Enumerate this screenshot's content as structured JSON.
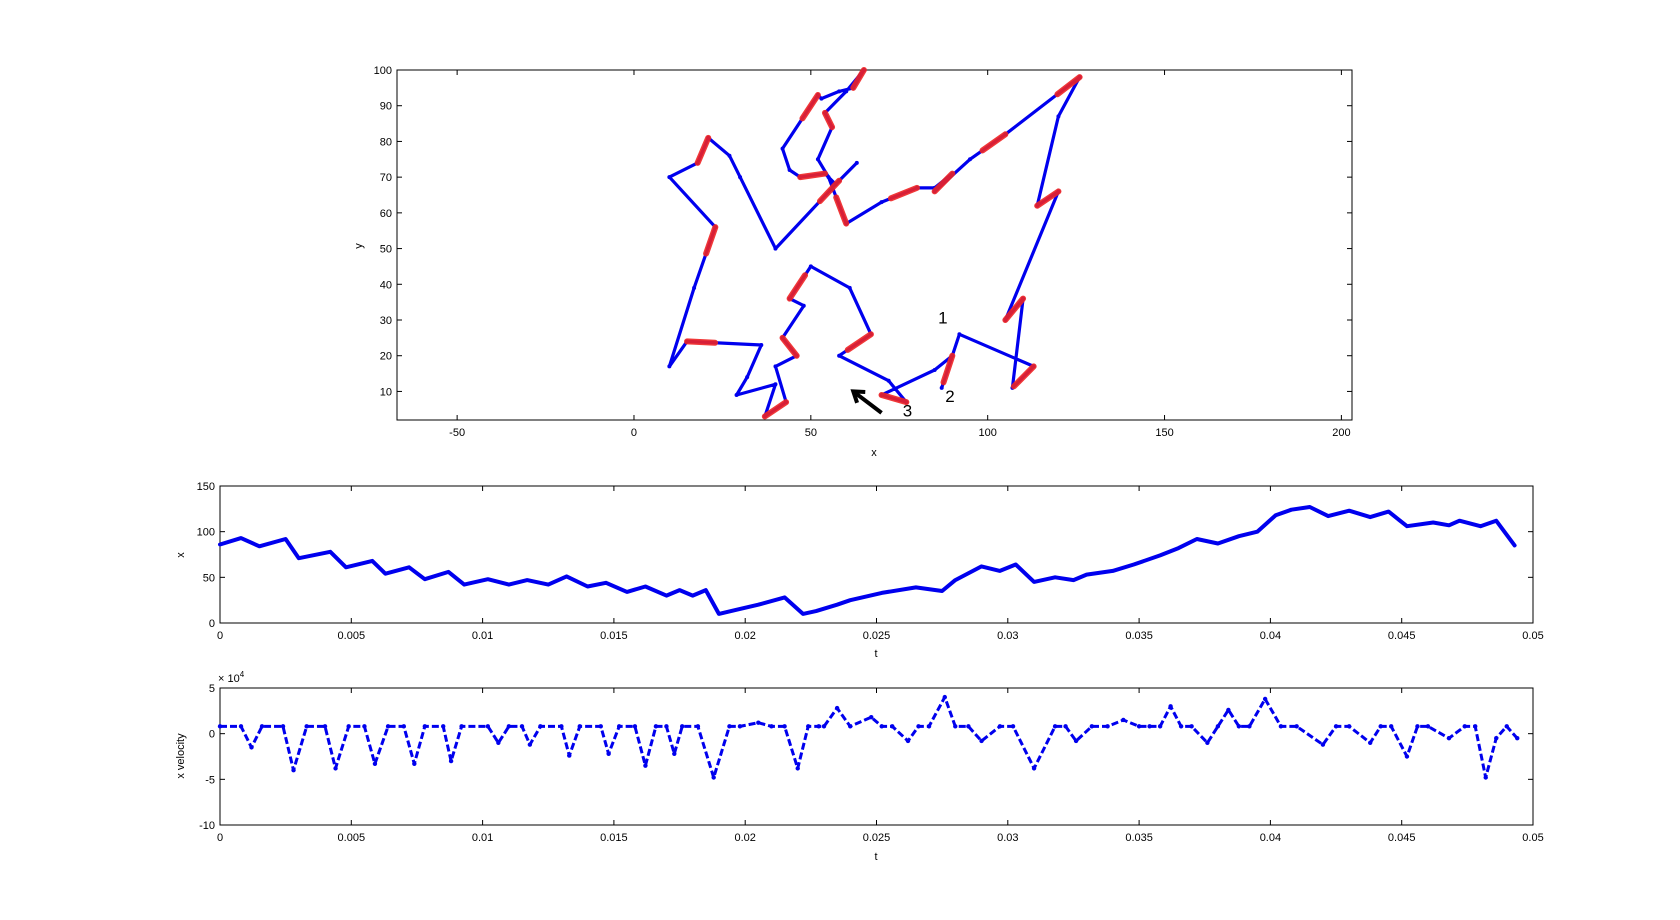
{
  "colors": {
    "trajectory": "#0000ee",
    "highlight": "#ee2222",
    "axes": "#000000"
  },
  "chart_data": [
    {
      "type": "line",
      "id": "xy",
      "xlabel": "x",
      "ylabel": "y",
      "xlim": [
        -67,
        203
      ],
      "ylim": [
        2,
        100
      ],
      "xticks": [
        -50,
        0,
        50,
        100,
        150,
        200
      ],
      "yticks": [
        10,
        20,
        30,
        40,
        50,
        60,
        70,
        80,
        90,
        100
      ],
      "series": [
        {
          "x": [
            126,
            105,
            95,
            85,
            90,
            85,
            80,
            70,
            60,
            55,
            52,
            56,
            54,
            60,
            65,
            62,
            58,
            53,
            52,
            42,
            44,
            47,
            54,
            57,
            63,
            58,
            40,
            30,
            27,
            21,
            18,
            10,
            23,
            17,
            10,
            15,
            36,
            32,
            29,
            40,
            37,
            43,
            40,
            46,
            42,
            48,
            44,
            50,
            61,
            67,
            58,
            72,
            77,
            70,
            85,
            90,
            87,
            92,
            113,
            107,
            110,
            105,
            120,
            114,
            120,
            126
          ],
          "y": [
            98,
            82,
            75,
            66,
            71,
            67,
            67,
            63,
            57,
            70,
            75,
            84,
            88,
            94,
            100,
            95,
            94,
            92,
            93,
            78,
            72,
            70,
            71,
            68,
            74,
            69,
            50,
            70,
            76,
            81,
            74,
            70,
            56,
            39,
            17,
            24,
            23,
            14,
            9,
            12,
            3,
            7,
            17,
            20,
            25,
            34,
            36,
            45,
            39,
            26,
            20,
            13,
            7,
            9,
            16,
            20,
            11,
            26,
            17,
            11,
            36,
            30,
            66,
            62,
            87,
            98
          ],
          "highlight_segments": [
            [
              0,
              1
            ],
            [
              1,
              2
            ],
            [
              3,
              4
            ],
            [
              6,
              7
            ],
            [
              8,
              9
            ],
            [
              11,
              12
            ],
            [
              14,
              15
            ],
            [
              18,
              19
            ],
            [
              21,
              22
            ],
            [
              25,
              26
            ],
            [
              29,
              30
            ],
            [
              32,
              33
            ],
            [
              35,
              36
            ],
            [
              40,
              41
            ],
            [
              43,
              44
            ],
            [
              46,
              47
            ],
            [
              49,
              50
            ],
            [
              52,
              53
            ],
            [
              55,
              56
            ],
            [
              58,
              59
            ],
            [
              60,
              61
            ],
            [
              62,
              63
            ]
          ]
        }
      ],
      "annotations": [
        {
          "text": "1",
          "x": 86,
          "y": 29
        },
        {
          "text": "2",
          "x": 88,
          "y": 7
        },
        {
          "text": "3",
          "x": 76,
          "y": 3
        }
      ],
      "arrow": {
        "from": [
          70,
          4
        ],
        "to": [
          62,
          10
        ]
      }
    },
    {
      "type": "line",
      "id": "xt",
      "xlabel": "t",
      "ylabel": "x",
      "xlim": [
        0,
        0.05
      ],
      "ylim": [
        0,
        150
      ],
      "xticks": [
        0,
        0.005,
        0.01,
        0.015,
        0.02,
        0.025,
        0.03,
        0.035,
        0.04,
        0.045,
        0.05
      ],
      "xticklabels": [
        "0",
        "0.005",
        "0.01",
        "0.015",
        "0.02",
        "0.025",
        "0.03",
        "0.035",
        "0.04",
        "0.045",
        "0.05"
      ],
      "yticks": [
        0,
        50,
        100,
        150
      ],
      "series": [
        {
          "x": [
            0,
            0.0008,
            0.0015,
            0.0025,
            0.003,
            0.0042,
            0.0048,
            0.0058,
            0.0063,
            0.0072,
            0.0078,
            0.0087,
            0.0093,
            0.0102,
            0.011,
            0.0117,
            0.0125,
            0.0132,
            0.014,
            0.0147,
            0.0155,
            0.0162,
            0.017,
            0.0175,
            0.018,
            0.0185,
            0.019,
            0.0196,
            0.0205,
            0.0215,
            0.0222,
            0.0227,
            0.0235,
            0.024,
            0.0252,
            0.0265,
            0.0275,
            0.028,
            0.029,
            0.0297,
            0.0303,
            0.031,
            0.0318,
            0.0325,
            0.033,
            0.034,
            0.0348,
            0.0358,
            0.0365,
            0.0372,
            0.038,
            0.0388,
            0.0395,
            0.0402,
            0.0408,
            0.0415,
            0.0422,
            0.043,
            0.0438,
            0.0445,
            0.0452,
            0.0462,
            0.0468,
            0.0472,
            0.048,
            0.0486,
            0.0493
          ],
          "y": [
            86,
            93,
            84,
            92,
            71,
            78,
            61,
            68,
            54,
            61,
            48,
            56,
            42,
            48,
            42,
            47,
            42,
            51,
            40,
            44,
            34,
            40,
            30,
            36,
            30,
            36,
            10,
            14,
            20,
            28,
            10,
            13,
            20,
            25,
            33,
            39,
            35,
            47,
            62,
            57,
            64,
            45,
            50,
            47,
            53,
            57,
            64,
            74,
            82,
            92,
            87,
            95,
            100,
            118,
            124,
            127,
            117,
            123,
            116,
            122,
            106,
            110,
            107,
            112,
            106,
            112,
            85
          ]
        }
      ]
    },
    {
      "type": "scatter",
      "id": "vt",
      "xlabel": "t",
      "ylabel": "x velocity",
      "exponent_label": "× 10",
      "exponent_power": "4",
      "xlim": [
        0,
        0.05
      ],
      "ylim": [
        -10,
        5
      ],
      "xticks": [
        0,
        0.005,
        0.01,
        0.015,
        0.02,
        0.025,
        0.03,
        0.035,
        0.04,
        0.045,
        0.05
      ],
      "xticklabels": [
        "0",
        "0.005",
        "0.01",
        "0.015",
        "0.02",
        "0.025",
        "0.03",
        "0.035",
        "0.04",
        "0.045",
        "0.05"
      ],
      "yticks": [
        -10,
        -5,
        0,
        5
      ],
      "series": [
        {
          "x": [
            0,
            0.0008,
            0.0012,
            0.0016,
            0.0024,
            0.0028,
            0.0033,
            0.004,
            0.0044,
            0.0049,
            0.0055,
            0.0059,
            0.0064,
            0.007,
            0.0074,
            0.0078,
            0.0085,
            0.0088,
            0.0092,
            0.0102,
            0.0106,
            0.011,
            0.0115,
            0.0118,
            0.0122,
            0.013,
            0.0133,
            0.0137,
            0.0145,
            0.0148,
            0.0152,
            0.0158,
            0.0162,
            0.0166,
            0.017,
            0.0173,
            0.0176,
            0.0182,
            0.0188,
            0.0194,
            0.0198,
            0.0205,
            0.021,
            0.0215,
            0.022,
            0.0224,
            0.0228,
            0.023,
            0.0235,
            0.024,
            0.0248,
            0.0252,
            0.0256,
            0.0262,
            0.0266,
            0.027,
            0.0276,
            0.028,
            0.0285,
            0.029,
            0.0297,
            0.0302,
            0.031,
            0.0318,
            0.0322,
            0.0326,
            0.0332,
            0.0338,
            0.0344,
            0.035,
            0.0354,
            0.0358,
            0.0362,
            0.0366,
            0.037,
            0.0376,
            0.038,
            0.0384,
            0.0388,
            0.0392,
            0.0398,
            0.0404,
            0.041,
            0.042,
            0.0425,
            0.043,
            0.0438,
            0.0442,
            0.0446,
            0.0452,
            0.0456,
            0.046,
            0.0468,
            0.0474,
            0.0478,
            0.0482,
            0.0486,
            0.049,
            0.0494
          ],
          "y": [
            0.8,
            0.8,
            -1.5,
            0.8,
            0.8,
            -4,
            0.8,
            0.8,
            -3.8,
            0.8,
            0.8,
            -3.3,
            0.8,
            0.8,
            -3.3,
            0.8,
            0.8,
            -3,
            0.8,
            0.8,
            -1,
            0.8,
            0.8,
            -1.2,
            0.8,
            0.8,
            -2.4,
            0.8,
            0.8,
            -2.2,
            0.8,
            0.8,
            -3.5,
            0.8,
            0.8,
            -2.2,
            0.8,
            0.8,
            -4.8,
            0.8,
            0.8,
            1.2,
            0.8,
            0.8,
            -3.8,
            0.8,
            0.8,
            0.8,
            2.8,
            0.8,
            1.8,
            0.8,
            0.8,
            -0.8,
            0.8,
            0.8,
            4,
            0.8,
            0.8,
            -0.8,
            0.8,
            0.8,
            -3.8,
            0.8,
            0.8,
            -0.8,
            0.8,
            0.8,
            1.5,
            0.8,
            0.8,
            0.8,
            3,
            0.8,
            0.8,
            -1,
            0.8,
            2.6,
            0.8,
            0.8,
            3.8,
            0.8,
            0.8,
            -1.2,
            0.8,
            0.8,
            -1,
            0.8,
            0.8,
            -2.5,
            0.8,
            0.8,
            -0.5,
            0.8,
            0.8,
            -4.8,
            -0.5,
            0.8,
            -0.5
          ]
        }
      ]
    }
  ]
}
